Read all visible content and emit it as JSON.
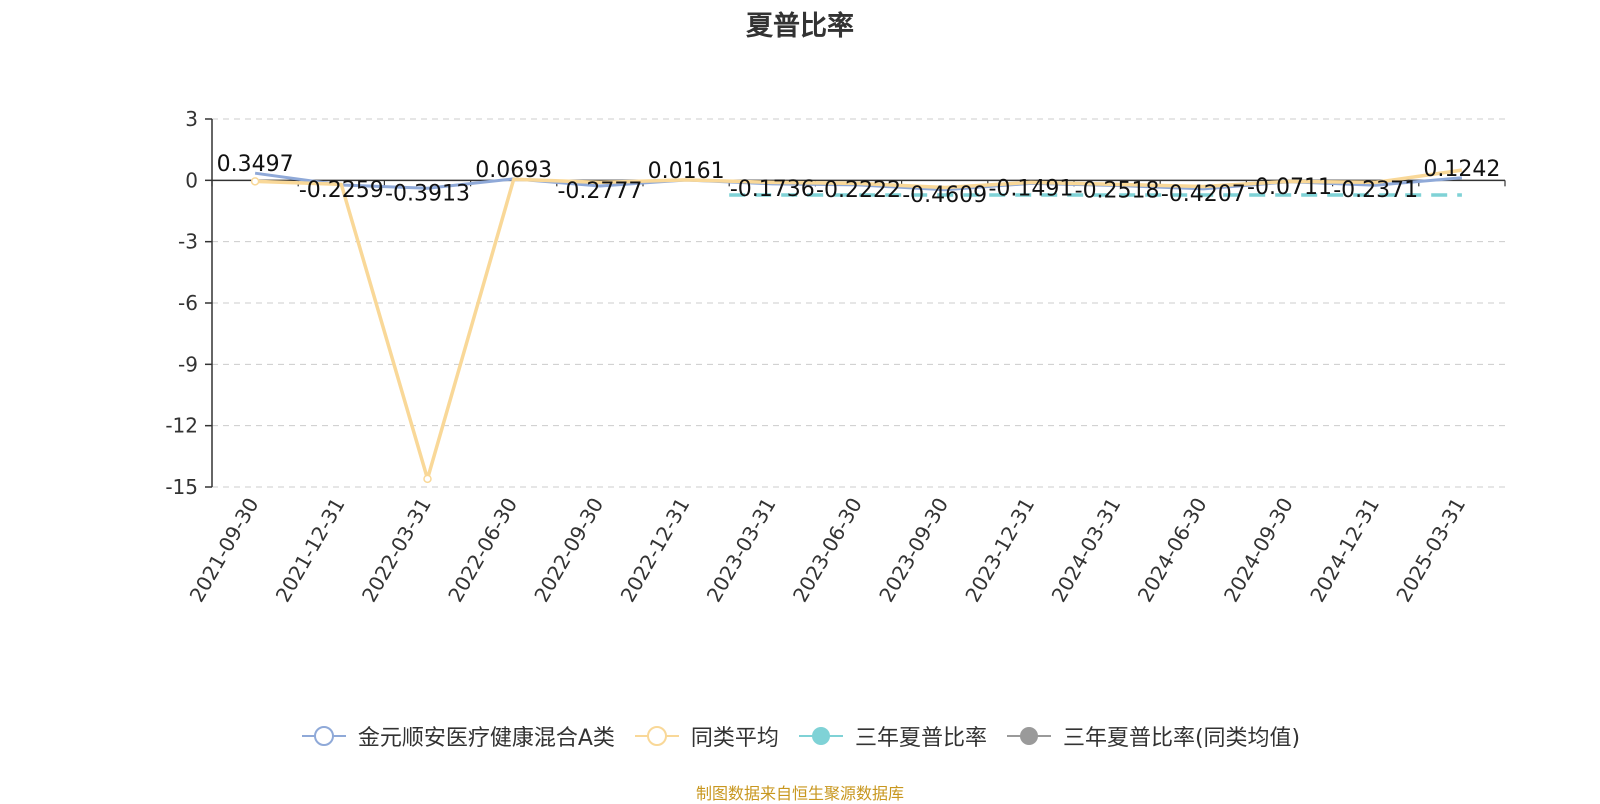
{
  "chart_data": {
    "type": "line",
    "title": "夏普比率",
    "xlabel": "",
    "ylabel": "",
    "ylim": [
      -15,
      3
    ],
    "yticks": [
      3,
      0,
      -3,
      -6,
      -9,
      -12,
      -15
    ],
    "categories": [
      "2021-09-30",
      "2021-12-31",
      "2022-03-31",
      "2022-06-30",
      "2022-09-30",
      "2022-12-31",
      "2023-03-31",
      "2023-06-30",
      "2023-09-30",
      "2023-12-31",
      "2024-03-31",
      "2024-06-30",
      "2024-09-30",
      "2024-12-31",
      "2025-03-31"
    ],
    "grid": true,
    "legend_position": "bottom",
    "series": [
      {
        "name": "金元顺安医疗健康混合A类",
        "color": "#8fa9d8",
        "values": [
          0.3497,
          -0.2259,
          -0.3913,
          0.0693,
          -0.2777,
          0.0161,
          -0.1736,
          -0.2222,
          -0.4609,
          -0.1491,
          -0.2518,
          -0.4207,
          -0.0711,
          -0.2371,
          0.1242
        ],
        "labels": [
          "0.3497",
          "-0.2259",
          "-0.3913",
          "0.0693",
          "-0.2777",
          "0.0161",
          "-0.1736",
          "-0.2222",
          "-0.4609",
          "-0.1491",
          "-0.2518",
          "-0.4207",
          "-0.0711",
          "-0.2371",
          "0.1242"
        ]
      },
      {
        "name": "同类平均",
        "color": "#f9d898",
        "values": [
          -0.05,
          -0.2,
          -14.6,
          0.05,
          -0.1,
          0.02,
          -0.1,
          -0.15,
          -0.35,
          -0.1,
          -0.2,
          -0.3,
          -0.05,
          -0.1,
          0.5
        ]
      },
      {
        "name": "三年夏普比率",
        "color": "#7fd2d6",
        "values": [
          null,
          null,
          null,
          null,
          null,
          null,
          -0.72,
          -0.72,
          -0.72,
          -0.72,
          -0.72,
          -0.72,
          -0.72,
          -0.72,
          -0.72
        ]
      },
      {
        "name": "三年夏普比率(同类均值)",
        "color": "#9a9a9a",
        "values": [
          null,
          null,
          null,
          null,
          null,
          null,
          null,
          null,
          null,
          null,
          null,
          null,
          null,
          null,
          null
        ]
      }
    ]
  },
  "source": "制图数据来自恒生聚源数据库"
}
